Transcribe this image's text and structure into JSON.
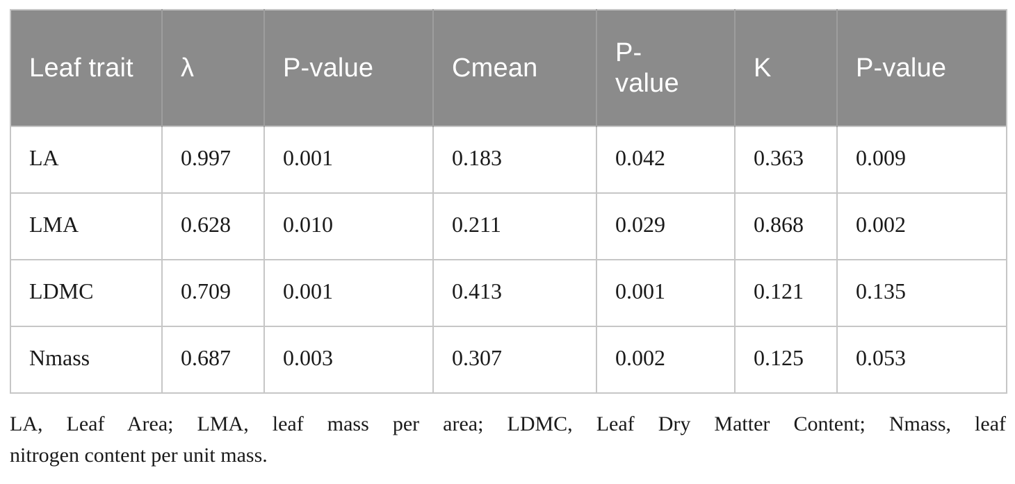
{
  "table": {
    "columns": [
      "Leaf trait",
      "λ",
      "P-value",
      "Cmean",
      "P-value",
      "K",
      "P-value"
    ],
    "rows": [
      {
        "cells": [
          "LA",
          "0.997",
          "0.001",
          "0.183",
          "0.042",
          "0.363",
          "0.009"
        ]
      },
      {
        "cells": [
          "LMA",
          "0.628",
          "0.010",
          "0.211",
          "0.029",
          "0.868",
          "0.002"
        ]
      },
      {
        "cells": [
          "LDMC",
          "0.709",
          "0.001",
          "0.413",
          "0.001",
          "0.121",
          "0.135"
        ]
      },
      {
        "cells": [
          "Nmass",
          "0.687",
          "0.003",
          "0.307",
          "0.002",
          "0.125",
          "0.053"
        ]
      }
    ]
  },
  "footnote": {
    "line1": "LA, Leaf Area; LMA, leaf mass per area; LDMC, Leaf Dry Matter Content; Nmass, leaf",
    "line2": "nitrogen content per unit mass."
  },
  "colors": {
    "header_bg": "#8b8b8b",
    "header_text": "#ffffff",
    "header_divider": "#9e9e9e",
    "body_border": "#c6c6c6",
    "body_text": "#1a1a1a"
  }
}
